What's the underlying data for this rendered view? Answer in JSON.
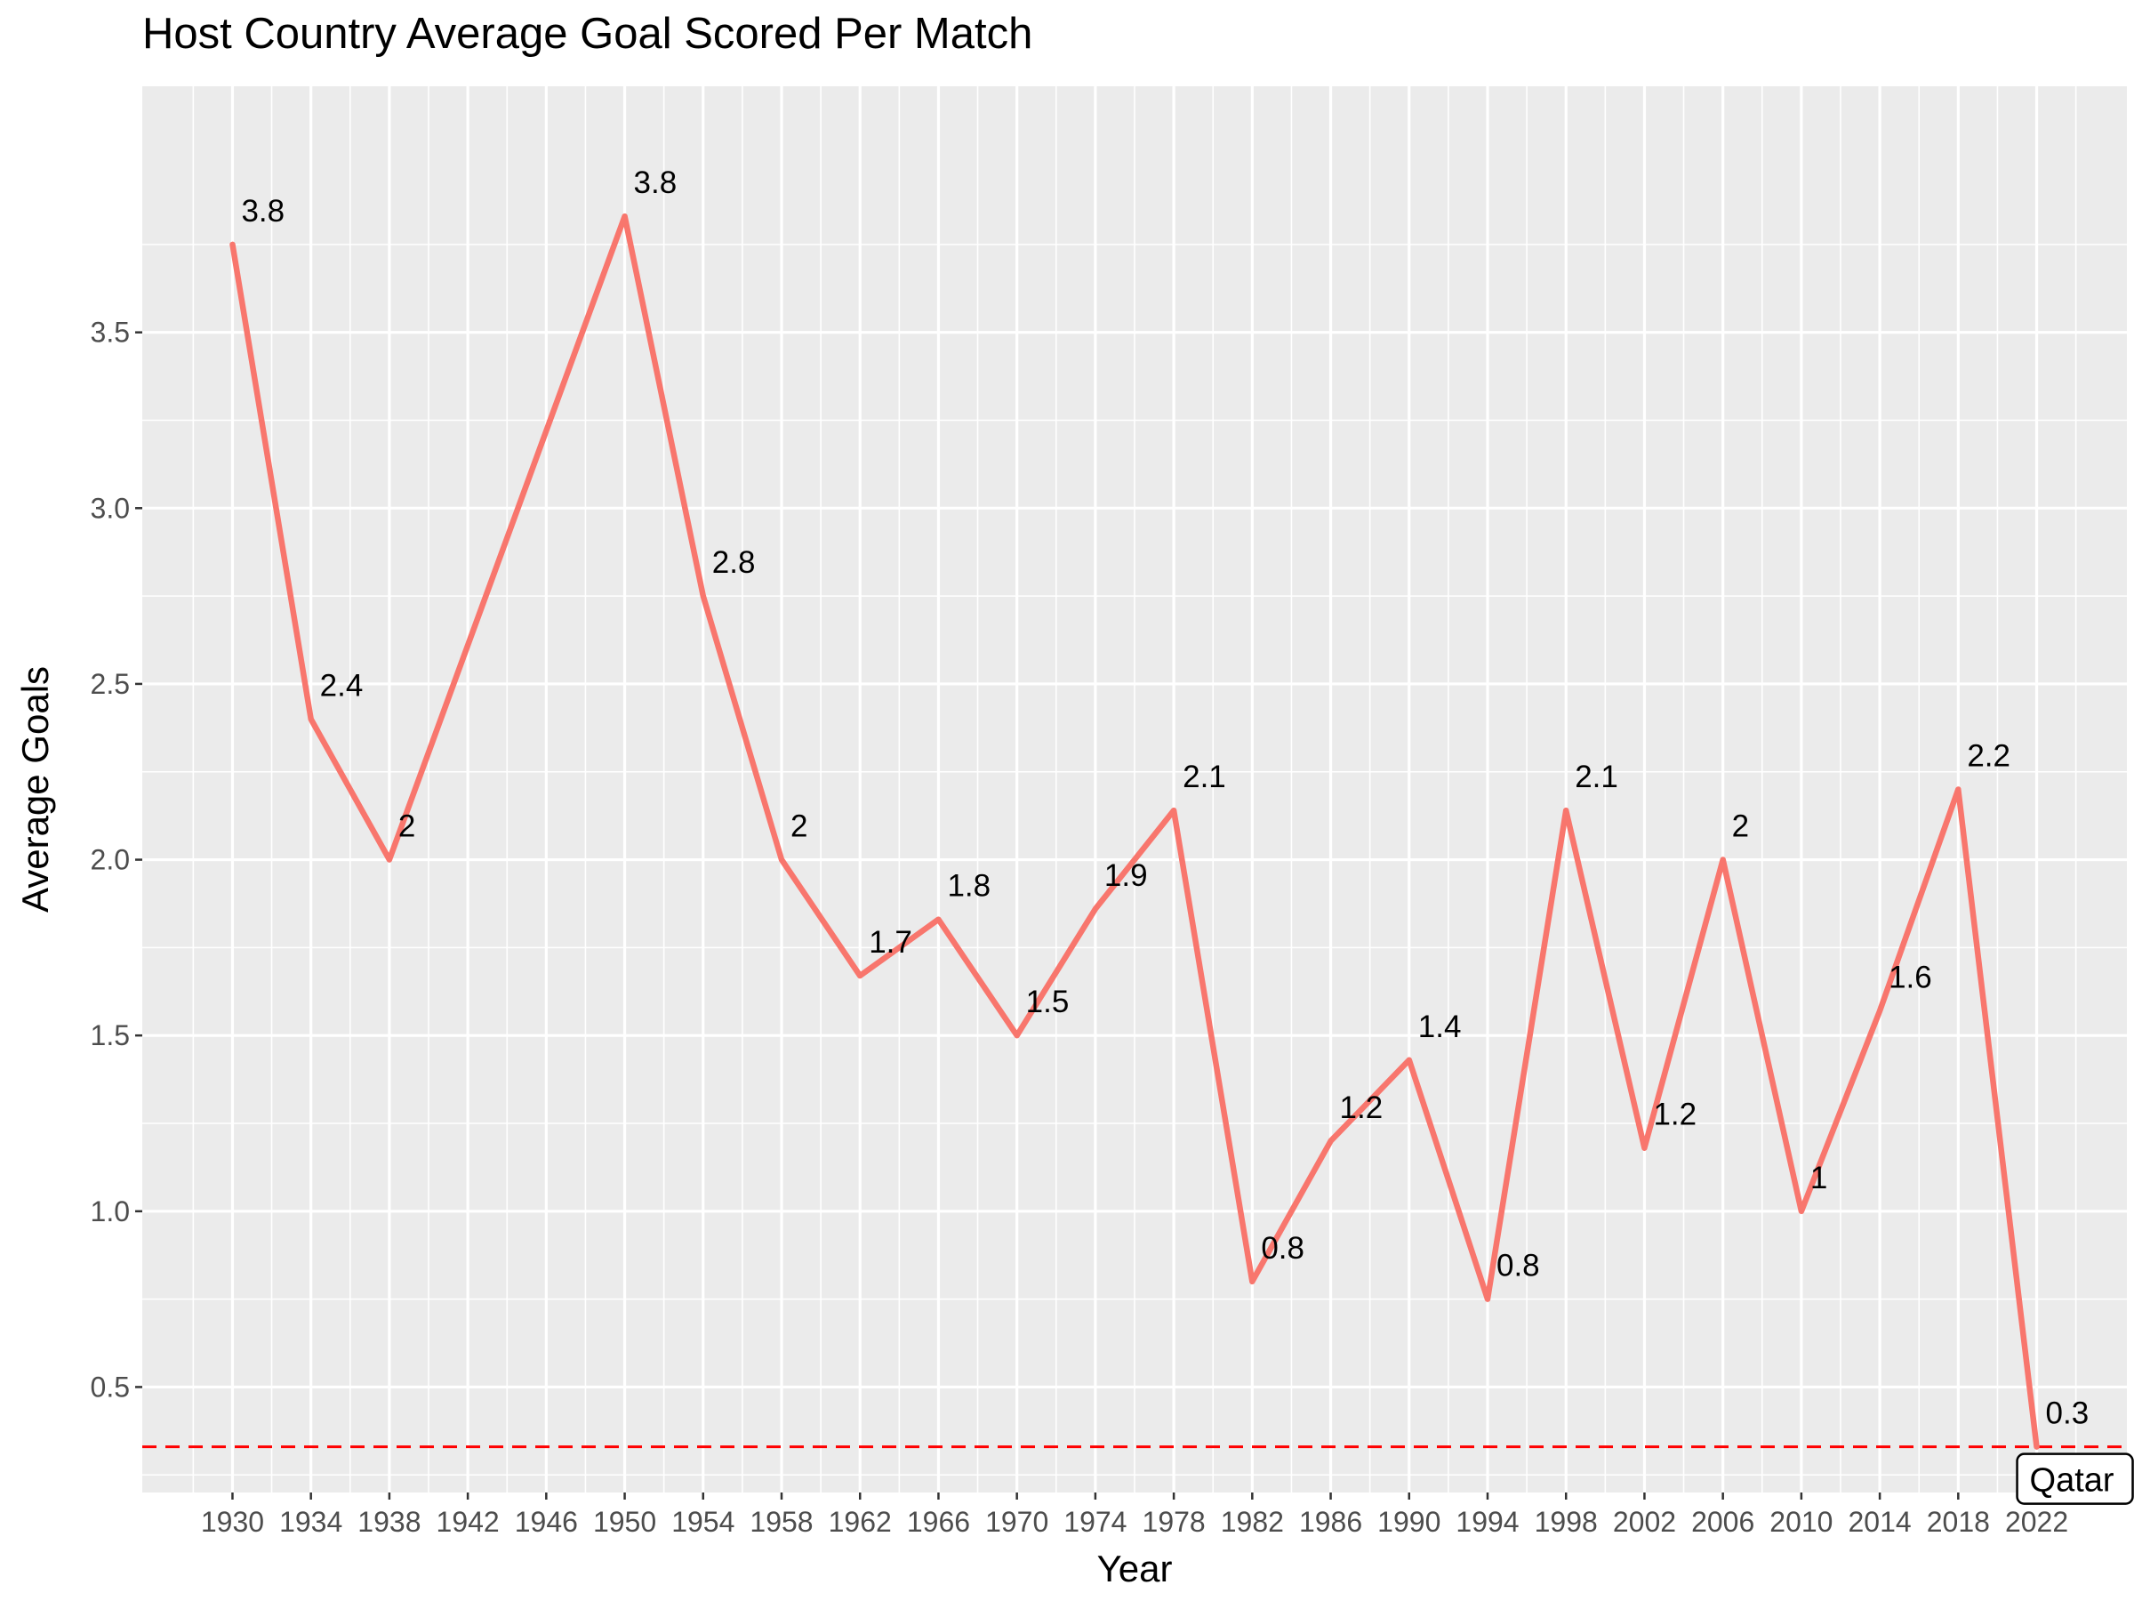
{
  "chart_data": {
    "type": "line",
    "title": "Host Country Average Goal Scored Per Match",
    "xlabel": "Year",
    "ylabel": "Average Goals",
    "x": [
      1930,
      1934,
      1938,
      1950,
      1954,
      1958,
      1962,
      1966,
      1970,
      1974,
      1978,
      1982,
      1986,
      1990,
      1994,
      1998,
      2002,
      2006,
      2010,
      2014,
      2018,
      2022
    ],
    "y": [
      3.75,
      2.4,
      2.0,
      3.83,
      2.75,
      2.0,
      1.67,
      1.83,
      1.5,
      1.86,
      2.14,
      0.8,
      1.2,
      1.43,
      0.75,
      2.14,
      1.18,
      2.0,
      1.0,
      1.57,
      2.2,
      0.33
    ],
    "data_labels": [
      "3.8",
      "2.4",
      "2",
      "3.8",
      "2.8",
      "2",
      "1.7",
      "1.8",
      "1.5",
      "1.9",
      "2.1",
      "0.8",
      "1.2",
      "1.4",
      "0.8",
      "2.1",
      "1.2",
      "2",
      "1",
      "1.6",
      "2.2",
      "0.3"
    ],
    "x_ticks": [
      1930,
      1934,
      1938,
      1942,
      1946,
      1950,
      1954,
      1958,
      1962,
      1966,
      1970,
      1974,
      1978,
      1982,
      1986,
      1990,
      1994,
      1998,
      2002,
      2006,
      2010,
      2014,
      2018,
      2022
    ],
    "y_ticks": [
      "0.5",
      "1.0",
      "1.5",
      "2.0",
      "2.5",
      "3.0",
      "3.5"
    ],
    "xlim": [
      1925.4,
      2026.6
    ],
    "ylim": [
      0.2,
      4.2
    ],
    "reference_line": {
      "y": 0.33,
      "style": "dashed",
      "color": "#ff0000"
    },
    "annotation": {
      "text": "Qatar",
      "x": 2022,
      "y": 0.33
    },
    "line_color": "#f8766d",
    "panel_color": "#ebebeb",
    "grid": true,
    "legend": "none"
  }
}
